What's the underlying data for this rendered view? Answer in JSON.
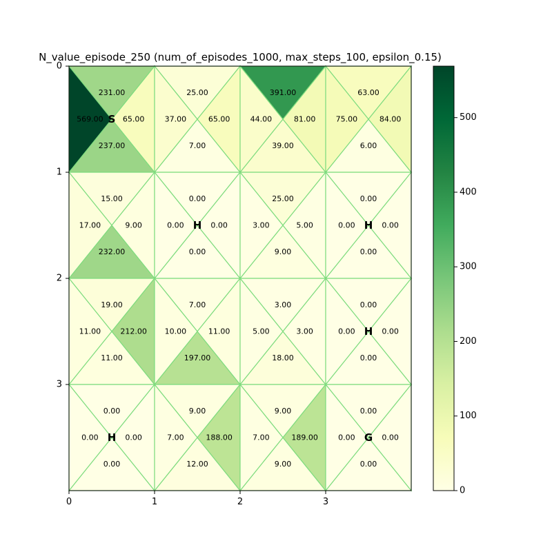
{
  "chart_data": {
    "type": "heatmap",
    "title": "N_value_episode_250 (num_of_episodes_1000, max_steps_100, epsilon_0.15)",
    "xlabel": "",
    "ylabel": "",
    "grid_size": [
      4,
      4
    ],
    "x_ticks": [
      "0",
      "1",
      "2",
      "3"
    ],
    "y_ticks": [
      "0",
      "1",
      "2",
      "3"
    ],
    "colormap": "YlGn",
    "vmin": 0,
    "vmax": 569,
    "colorbar_ticks": [
      "0",
      "100",
      "200",
      "300",
      "400",
      "500"
    ],
    "colorbar_tick_values": [
      0,
      100,
      200,
      300,
      400,
      500
    ],
    "edge_color": "#7fdc7f",
    "cells": [
      {
        "row": 0,
        "col": 0,
        "label": "S",
        "up": 231.0,
        "left": 569.0,
        "right": 65.0,
        "down": 237.0
      },
      {
        "row": 0,
        "col": 1,
        "label": "",
        "up": 25.0,
        "left": 37.0,
        "right": 65.0,
        "down": 7.0
      },
      {
        "row": 0,
        "col": 2,
        "label": "",
        "up": 391.0,
        "left": 44.0,
        "right": 81.0,
        "down": 39.0
      },
      {
        "row": 0,
        "col": 3,
        "label": "",
        "up": 63.0,
        "left": 75.0,
        "right": 84.0,
        "down": 6.0
      },
      {
        "row": 1,
        "col": 0,
        "label": "",
        "up": 15.0,
        "left": 17.0,
        "right": 9.0,
        "down": 232.0
      },
      {
        "row": 1,
        "col": 1,
        "label": "H",
        "up": 0.0,
        "left": 0.0,
        "right": 0.0,
        "down": 0.0
      },
      {
        "row": 1,
        "col": 2,
        "label": "",
        "up": 25.0,
        "left": 3.0,
        "right": 5.0,
        "down": 9.0
      },
      {
        "row": 1,
        "col": 3,
        "label": "H",
        "up": 0.0,
        "left": 0.0,
        "right": 0.0,
        "down": 0.0
      },
      {
        "row": 2,
        "col": 0,
        "label": "",
        "up": 19.0,
        "left": 11.0,
        "right": 212.0,
        "down": 11.0
      },
      {
        "row": 2,
        "col": 1,
        "label": "",
        "up": 7.0,
        "left": 10.0,
        "right": 11.0,
        "down": 197.0
      },
      {
        "row": 2,
        "col": 2,
        "label": "",
        "up": 3.0,
        "left": 5.0,
        "right": 3.0,
        "down": 18.0
      },
      {
        "row": 2,
        "col": 3,
        "label": "H",
        "up": 0.0,
        "left": 0.0,
        "right": 0.0,
        "down": 0.0
      },
      {
        "row": 3,
        "col": 0,
        "label": "H",
        "up": 0.0,
        "left": 0.0,
        "right": 0.0,
        "down": 0.0
      },
      {
        "row": 3,
        "col": 1,
        "label": "",
        "up": 9.0,
        "left": 7.0,
        "right": 188.0,
        "down": 12.0
      },
      {
        "row": 3,
        "col": 2,
        "label": "",
        "up": 9.0,
        "left": 7.0,
        "right": 189.0,
        "down": 9.0
      },
      {
        "row": 3,
        "col": 3,
        "label": "G",
        "up": 0.0,
        "left": 0.0,
        "right": 0.0,
        "down": 0.0
      }
    ]
  }
}
